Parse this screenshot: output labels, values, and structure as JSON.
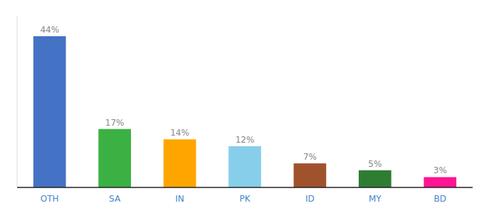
{
  "chart_data": {
    "type": "bar",
    "categories": [
      "OTH",
      "SA",
      "IN",
      "PK",
      "ID",
      "MY",
      "BD"
    ],
    "values": [
      44,
      17,
      14,
      12,
      7,
      5,
      3
    ],
    "value_labels": [
      "44%",
      "17%",
      "14%",
      "12%",
      "7%",
      "5%",
      "3%"
    ],
    "colors": [
      "#4472C4",
      "#3BB143",
      "#FFA500",
      "#87CEEB",
      "#A0522D",
      "#2E7D32",
      "#FF1493"
    ],
    "ylim": [
      0,
      50
    ],
    "data_labels": true,
    "tick_labels": "x",
    "grid": false
  }
}
